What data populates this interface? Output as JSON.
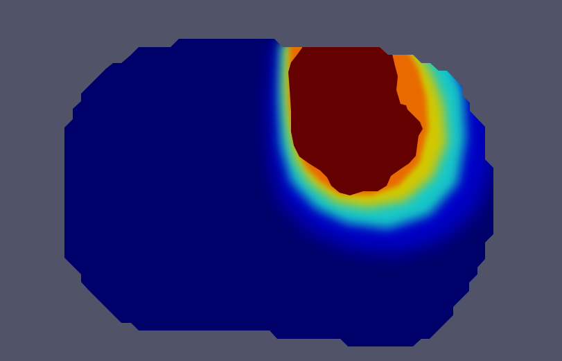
{
  "view": {
    "background_color": "#515469",
    "colormap": "jet",
    "colors": {
      "low": "#00006a",
      "blue": "#0000c8",
      "cyan": "#16c8c8",
      "yellow": "#d2c800",
      "orange": "#e86a00",
      "red": "#c81400",
      "high": "#640000"
    }
  }
}
